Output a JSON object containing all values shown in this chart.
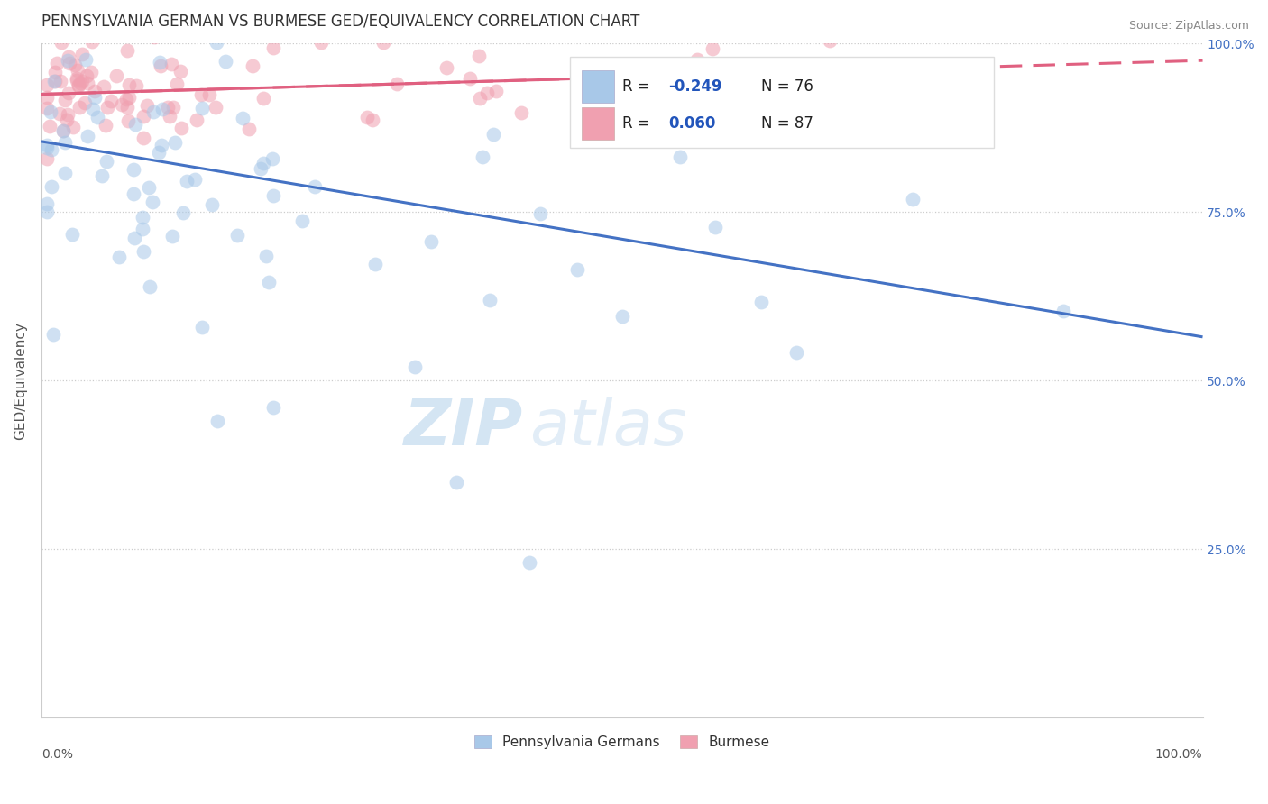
{
  "title": "PENNSYLVANIA GERMAN VS BURMESE GED/EQUIVALENCY CORRELATION CHART",
  "source_text": "Source: ZipAtlas.com",
  "ylabel": "GED/Equivalency",
  "blue_color": "#A8C8E8",
  "pink_color": "#F0A0B0",
  "blue_line_color": "#4472C4",
  "pink_line_color": "#E06080",
  "blue_R": -0.249,
  "blue_N": 76,
  "pink_R": 0.06,
  "pink_N": 87,
  "legend_label_blue": "Pennsylvania Germans",
  "legend_label_pink": "Burmese",
  "watermark_zip": "ZIP",
  "watermark_atlas": "atlas",
  "xlim": [
    0.0,
    1.0
  ],
  "ylim": [
    0.0,
    1.0
  ],
  "ytick_positions": [
    0.25,
    0.5,
    0.75,
    1.0
  ],
  "ytick_labels": [
    "25.0%",
    "50.0%",
    "75.0%",
    "100.0%"
  ],
  "blue_line_y_start": 0.855,
  "blue_line_y_end": 0.565,
  "pink_line_y_start": 0.925,
  "pink_line_y_end": 0.975,
  "title_fontsize": 12,
  "tick_fontsize": 10,
  "scatter_size": 130,
  "scatter_alpha": 0.55,
  "line_width": 2.2
}
